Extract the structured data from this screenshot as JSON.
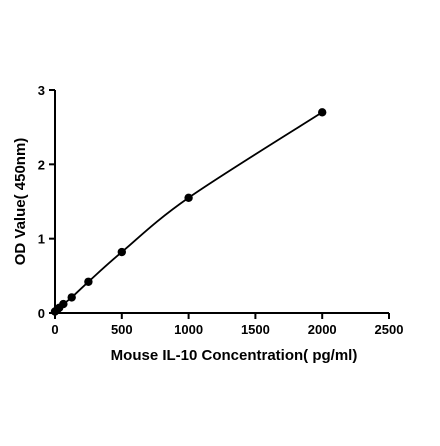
{
  "chart_data": {
    "type": "scatter",
    "title": "",
    "xlabel": "Mouse IL-10  Concentration( pg/ml)",
    "ylabel": "OD Value( 450nm)",
    "xlim": [
      0,
      2500
    ],
    "ylim": [
      0,
      3
    ],
    "xticks": [
      0,
      500,
      1000,
      1500,
      2000,
      2500
    ],
    "yticks": [
      0,
      1,
      2,
      3
    ],
    "grid": false,
    "legend": "none",
    "fit_line": true,
    "marker_color": "#000000",
    "series": [
      {
        "x": [
          0,
          15.6,
          31.25,
          62.5,
          125,
          250,
          500,
          1000,
          2000
        ],
        "y": [
          0.02,
          0.04,
          0.07,
          0.12,
          0.21,
          0.42,
          0.82,
          1.55,
          2.7
        ]
      }
    ]
  }
}
